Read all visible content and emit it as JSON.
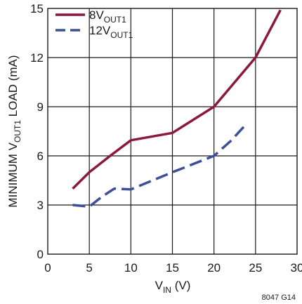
{
  "chart_data": {
    "type": "line",
    "xlim": [
      0,
      30
    ],
    "ylim": [
      0,
      15
    ],
    "x_ticks": [
      "0",
      "5",
      "10",
      "15",
      "20",
      "25",
      "30"
    ],
    "y_ticks": [
      "0",
      "3",
      "6",
      "9",
      "12",
      "15"
    ],
    "xlabel": {
      "main": "V",
      "sub": "IN",
      "suffix": " (V)"
    },
    "ylabel": {
      "prefix": "MINIMUM V",
      "sub": "OUT1",
      "suffix": " LOAD (mA)"
    },
    "grid": true,
    "legend_position": "top-left",
    "series": [
      {
        "name": {
          "main": "8V",
          "sub": "OUT1"
        },
        "color": "#8b1a3a",
        "style": "solid",
        "points": [
          [
            3,
            4
          ],
          [
            5,
            5
          ],
          [
            7.5,
            6
          ],
          [
            10,
            6.95
          ],
          [
            15,
            7.4
          ],
          [
            20,
            9
          ],
          [
            25,
            12
          ],
          [
            28,
            14.9
          ]
        ]
      },
      {
        "name": {
          "main": "12V",
          "sub": "OUT1"
        },
        "color": "#3d4f9a",
        "style": "dashed",
        "points": [
          [
            3,
            3
          ],
          [
            5,
            2.9
          ],
          [
            6.5,
            3.5
          ],
          [
            8,
            4
          ],
          [
            10,
            3.95
          ],
          [
            15,
            5
          ],
          [
            20,
            6
          ],
          [
            22,
            6.9
          ],
          [
            24,
            8
          ]
        ]
      }
    ],
    "note": "8047 G14"
  }
}
